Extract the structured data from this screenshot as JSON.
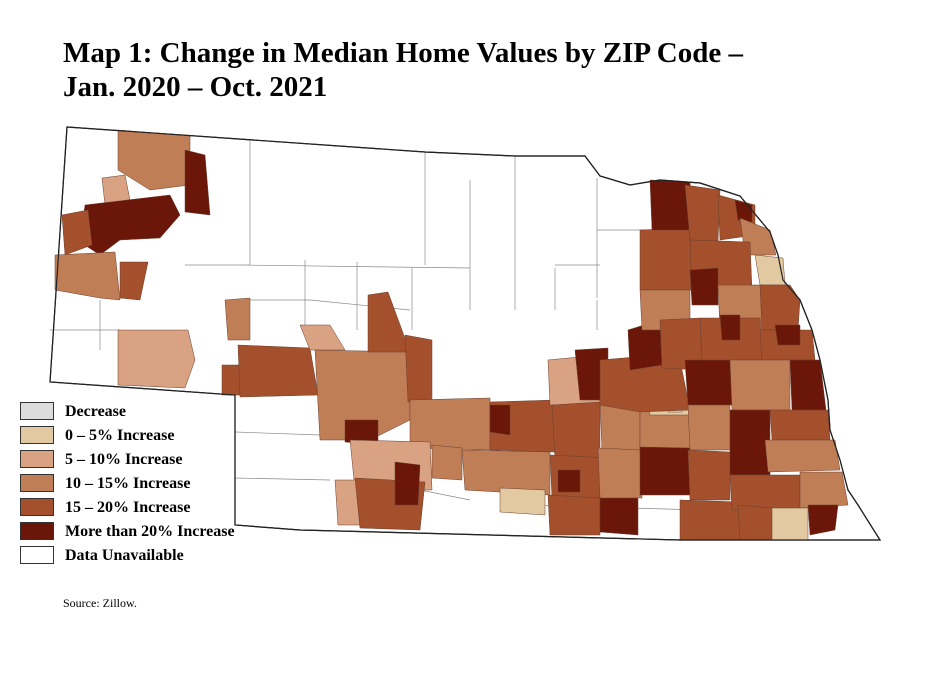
{
  "title_line1": "Map 1: Change in Median Home Values by ZIP Code –",
  "title_line2": "Jan. 2020 – Oct. 2021",
  "legend": [
    {
      "label": "Decrease",
      "color": "#dcdcdc"
    },
    {
      "label": "0 – 5% Increase",
      "color": "#e3c9a2"
    },
    {
      "label": "5 – 10% Increase",
      "color": "#d9a283"
    },
    {
      "label": "10 – 15% Increase",
      "color": "#c07e56"
    },
    {
      "label": "15 – 20% Increase",
      "color": "#a4502c"
    },
    {
      "label": "More than 20% Increase",
      "color": "#6a1608"
    },
    {
      "label": "Data Unavailable",
      "color": "#ffffff"
    }
  ],
  "source": "Source: Zillow.",
  "colors": {
    "boundary": "#555555",
    "outline": "#222222"
  }
}
